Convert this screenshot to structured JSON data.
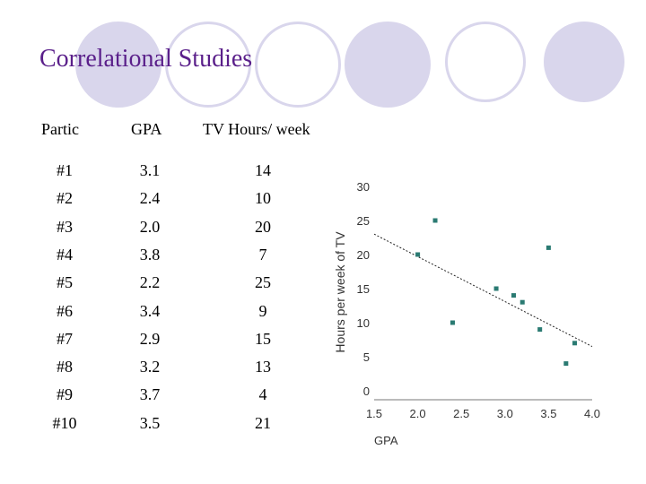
{
  "slide": {
    "title": "Correlational Studies",
    "title_color": "#5a1f8a",
    "decor_fill": "#d9d6ec",
    "decor_ring": "#d9d6ec"
  },
  "table": {
    "headers": [
      "Partic",
      "GPA",
      "TV Hours/ week"
    ],
    "rows": [
      [
        "#1",
        "3.1",
        "14"
      ],
      [
        "#2",
        "2.4",
        "10"
      ],
      [
        "#3",
        "2.0",
        "20"
      ],
      [
        "#4",
        "3.8",
        "7"
      ],
      [
        "#5",
        "2.2",
        "25"
      ],
      [
        "#6",
        "3.4",
        "9"
      ],
      [
        "#7",
        "2.9",
        "15"
      ],
      [
        "#8",
        "3.2",
        "13"
      ],
      [
        "#9",
        "3.7",
        "4"
      ],
      [
        "#10",
        "3.5",
        "21"
      ]
    ]
  },
  "chart_data": {
    "type": "scatter",
    "title": "",
    "xlabel": "GPA",
    "ylabel": "Hours per week of TV",
    "xlim": [
      1.5,
      4.0
    ],
    "ylim": [
      0,
      30
    ],
    "xticks": [
      "1.5",
      "2.0",
      "2.5",
      "3.0",
      "3.5",
      "4.0"
    ],
    "yticks": [
      "0",
      "5",
      "10",
      "15",
      "20",
      "25",
      "30"
    ],
    "grid": false,
    "point_color": "#2a7a72",
    "points": [
      {
        "x": 3.1,
        "y": 14
      },
      {
        "x": 2.4,
        "y": 10
      },
      {
        "x": 2.0,
        "y": 20
      },
      {
        "x": 3.8,
        "y": 7
      },
      {
        "x": 2.2,
        "y": 25
      },
      {
        "x": 3.4,
        "y": 9
      },
      {
        "x": 2.9,
        "y": 15
      },
      {
        "x": 3.2,
        "y": 13
      },
      {
        "x": 3.7,
        "y": 4
      },
      {
        "x": 3.5,
        "y": 21
      }
    ],
    "trendline": {
      "x": [
        1.5,
        4.0
      ],
      "y": [
        23.0,
        6.5
      ],
      "style": "dashed"
    }
  }
}
